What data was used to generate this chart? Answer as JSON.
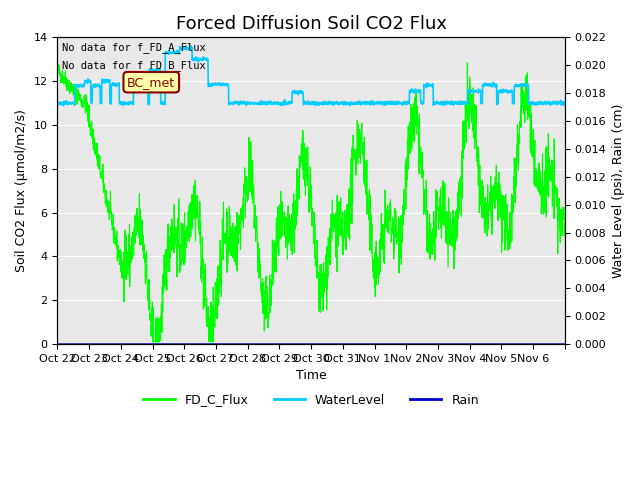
{
  "title": "Forced Diffusion Soil CO2 Flux",
  "xlabel": "Time",
  "ylabel_left": "Soil CO2 Flux (µmol/m2/s)",
  "ylabel_right": "Water Level (psi), Rain (cm)",
  "no_data_text1": "No data for f_FD_A_Flux",
  "no_data_text2": "No data for f_FD_B_Flux",
  "bc_met_label": "BC_met",
  "ylim_left": [
    0,
    14
  ],
  "ylim_right": [
    0.0,
    0.022
  ],
  "yticks_left": [
    0,
    2,
    4,
    6,
    8,
    10,
    12,
    14
  ],
  "yticks_right": [
    0.0,
    0.002,
    0.004,
    0.006,
    0.008,
    0.01,
    0.012,
    0.014,
    0.016,
    0.018,
    0.02,
    0.022
  ],
  "xtick_positions": [
    0,
    1,
    2,
    3,
    4,
    5,
    6,
    7,
    8,
    9,
    10,
    11,
    12,
    13,
    14,
    15,
    16
  ],
  "xtick_labels": [
    "Oct 22",
    "Oct 23",
    "Oct 24",
    "Oct 25",
    "Oct 26",
    "Oct 27",
    "Oct 28",
    "Oct 29",
    "Oct 30",
    "Oct 31",
    "Nov 1",
    "Nov 2",
    "Nov 3",
    "Nov 4",
    "Nov 5",
    "Nov 6",
    ""
  ],
  "fd_c_color": "#00ff00",
  "water_color": "#00ccff",
  "rain_color": "#0000cc",
  "background_color": "#e8e8e8",
  "grid_color": "#ffffff",
  "title_fontsize": 13,
  "label_fontsize": 9,
  "tick_fontsize": 8
}
